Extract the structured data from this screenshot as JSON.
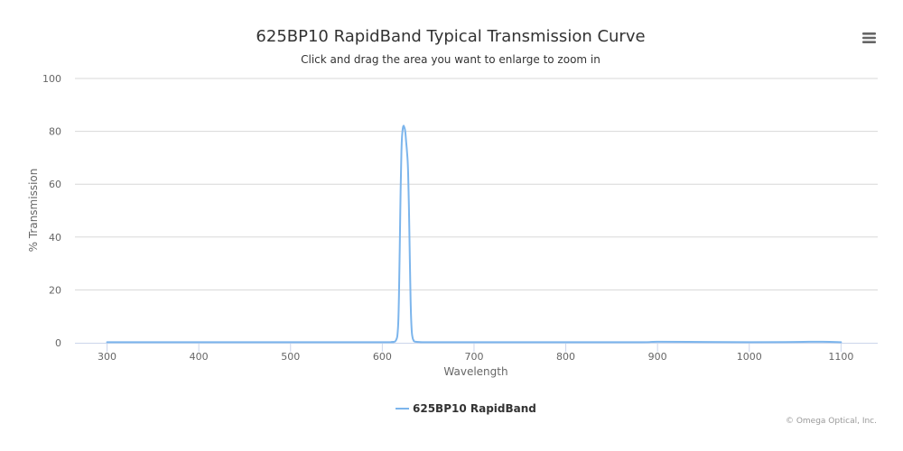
{
  "chart_data": {
    "type": "line",
    "title": "625BP10 RapidBand Typical Transmission Curve",
    "subtitle": "Click and drag the area you want to enlarge to zoom in",
    "xlabel": "Wavelength",
    "ylabel": "% Transmission",
    "xlim": [
      265,
      1140
    ],
    "ylim": [
      0,
      100
    ],
    "x_ticks": [
      300,
      400,
      500,
      600,
      700,
      800,
      900,
      1000,
      1100
    ],
    "y_ticks": [
      0,
      20,
      40,
      60,
      80,
      100
    ],
    "grid": true,
    "legend_position": "bottom-center",
    "series": [
      {
        "name": "625BP10 RapidBand",
        "color": "#7cb5ec",
        "x": [
          300,
          400,
          500,
          600,
          610,
          615,
          617,
          618,
          619,
          620,
          621,
          622,
          623,
          624,
          625,
          626,
          627,
          628,
          629,
          630,
          631,
          632,
          633,
          634,
          635,
          640,
          650,
          700,
          800,
          880,
          900,
          950,
          1000,
          1050,
          1080,
          1100
        ],
        "y": [
          0.2,
          0.2,
          0.2,
          0.2,
          0.3,
          1,
          5,
          15,
          35,
          58,
          74,
          80,
          82,
          81.5,
          80,
          76,
          72,
          66,
          52,
          32,
          14,
          5,
          2,
          1,
          0.5,
          0.3,
          0.2,
          0.2,
          0.2,
          0.2,
          0.4,
          0.3,
          0.2,
          0.3,
          0.4,
          0.2
        ]
      }
    ]
  },
  "menu": {
    "icon": "hamburger-menu-icon"
  },
  "credits": {
    "text": "© Omega Optical, Inc."
  }
}
